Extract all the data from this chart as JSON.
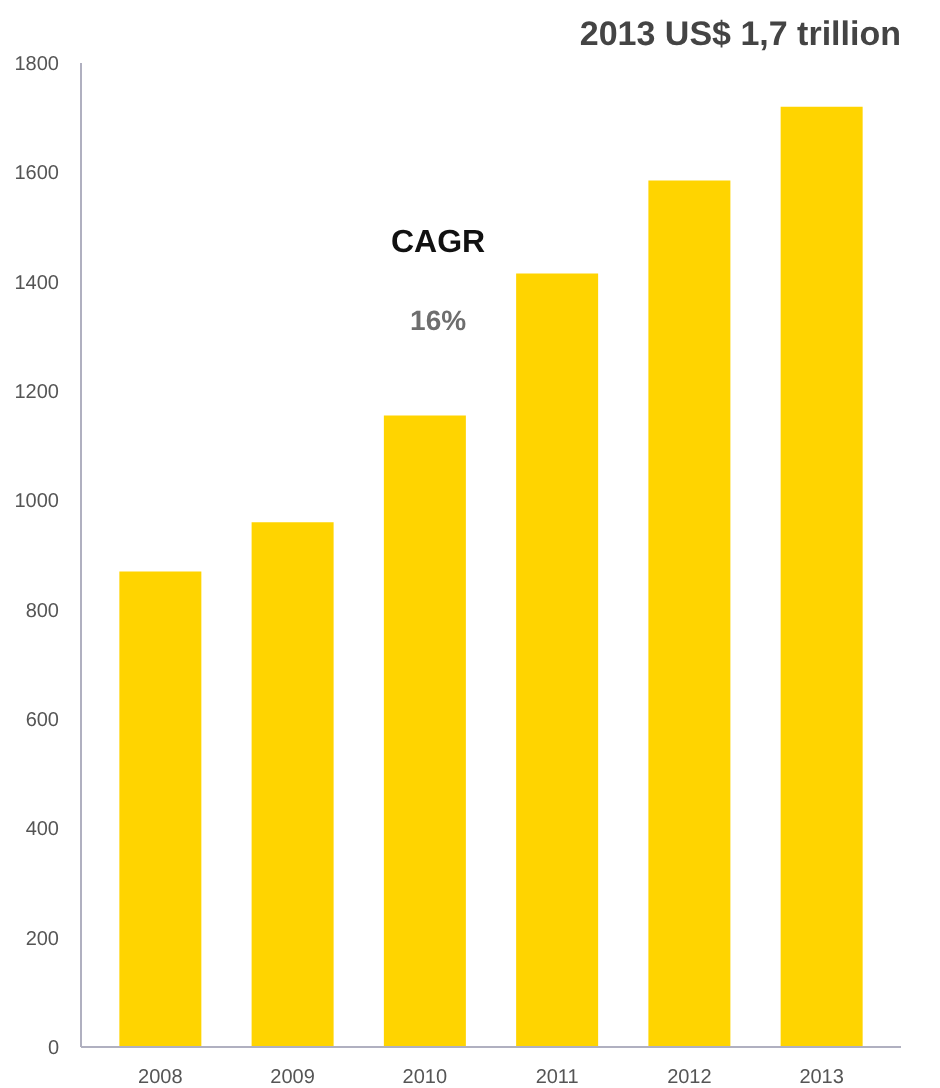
{
  "chart_data": {
    "type": "bar",
    "title": "2013 US$ 1,7 trillion",
    "categories": [
      "2008",
      "2009",
      "2010",
      "2011",
      "2012",
      "2013"
    ],
    "values": [
      870,
      960,
      1155,
      1415,
      1585,
      1720
    ],
    "color": "#ffd400",
    "ylim": [
      0,
      1800
    ],
    "yticks": [
      0,
      200,
      400,
      600,
      800,
      1000,
      1200,
      1400,
      1600,
      1800
    ],
    "grid": false,
    "annotations": [
      "CAGR",
      "16%"
    ]
  }
}
